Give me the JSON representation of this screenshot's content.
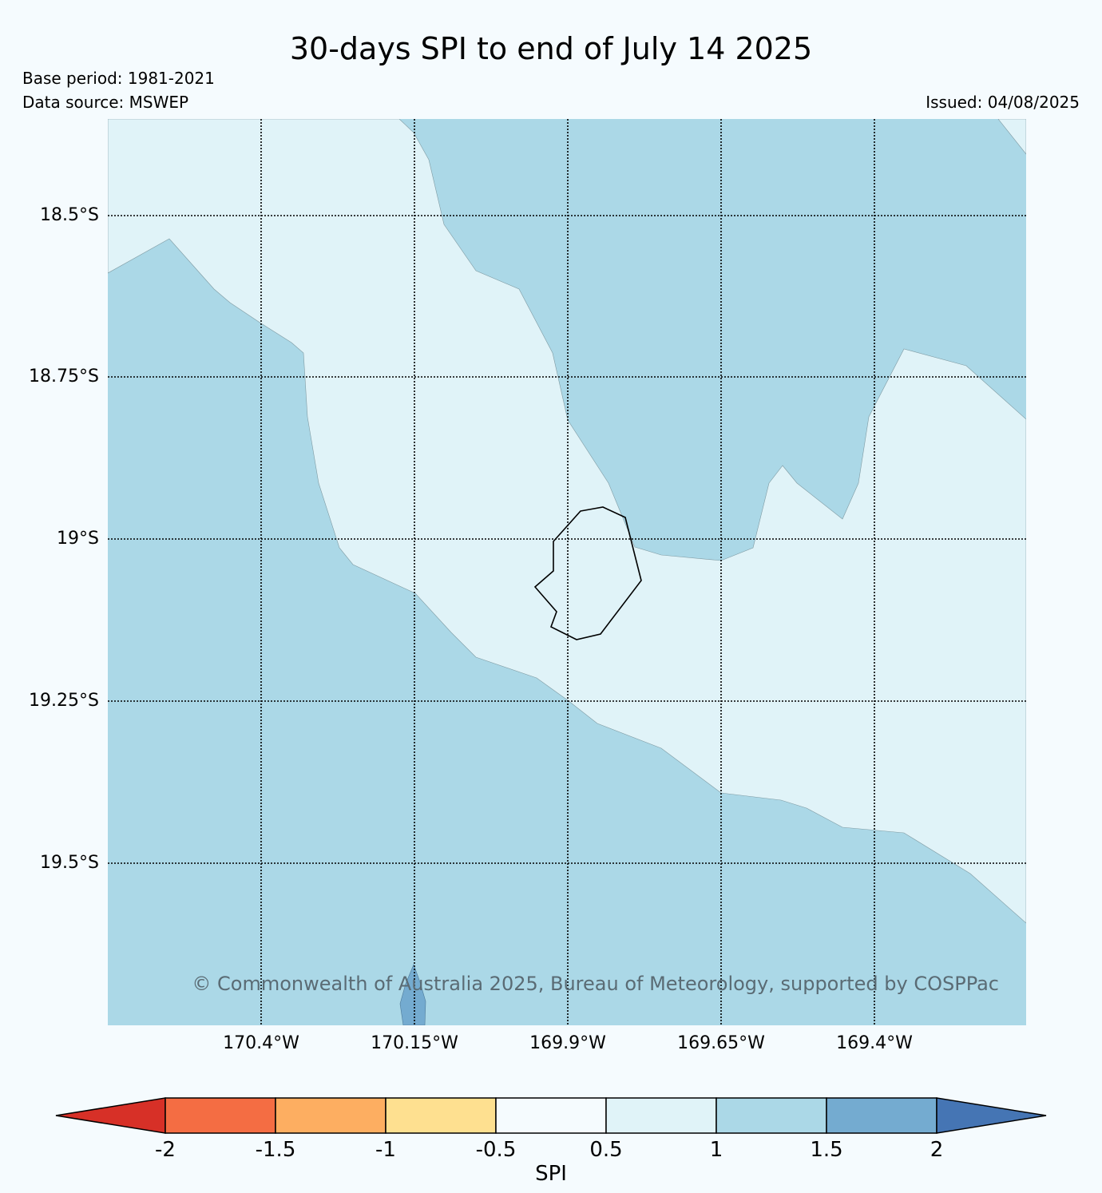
{
  "header": {
    "title": "30-days SPI to end of July 14 2025",
    "base_period": "Base period: 1981-2021",
    "data_source": "Data source: MSWEP",
    "issued": "Issued: 04/08/2025"
  },
  "map": {
    "lat_labels": [
      "18.5°S",
      "18.75°S",
      "19°S",
      "19.25°S",
      "19.5°S"
    ],
    "lon_labels": [
      "170.4°W",
      "170.15°W",
      "169.9°W",
      "169.65°W",
      "169.4°W"
    ],
    "colors": {
      "class_1_to_1_5": "#abd8e7",
      "class_0_5_to_1": "#e0f3f8",
      "class_1_5_to_2": "#74abd0",
      "coastline": "#000000"
    },
    "copyright": "© Commonwealth of Australia 2025, Bureau of Meteorology, supported by COSPPac"
  },
  "colorbar": {
    "label": "SPI",
    "ticks": [
      "-2",
      "-1.5",
      "-1",
      "-0.5",
      "0.5",
      "1",
      "1.5",
      "2"
    ],
    "colors": [
      "#d73027",
      "#f46d43",
      "#fdae61",
      "#fee090",
      "#f5fbfe",
      "#e0f3f8",
      "#abd8e7",
      "#74abd0",
      "#4575b4"
    ]
  }
}
